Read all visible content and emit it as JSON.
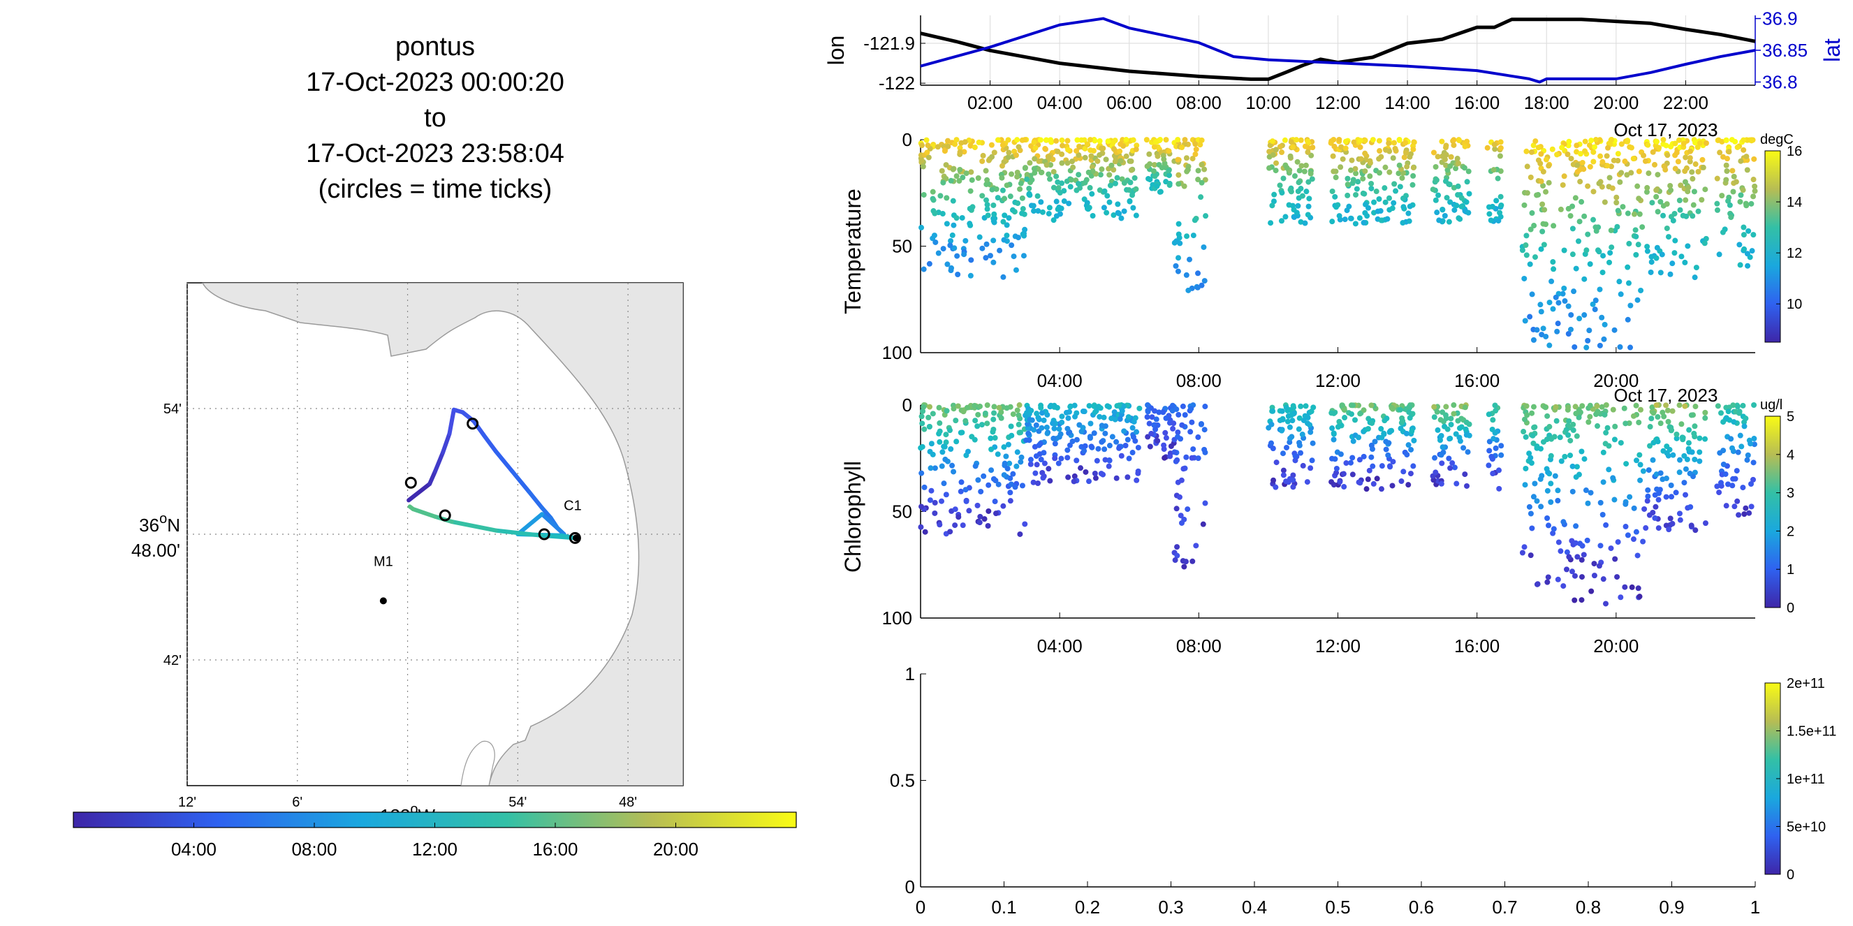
{
  "title_lines": [
    "pontus",
    "17-Oct-2023 00:00:20",
    "to",
    "17-Oct-2023 23:58:04",
    "(circles = time ticks)"
  ],
  "chart_data": [
    {
      "id": "map",
      "type": "scatter",
      "description_role": "vehicle track map colored by time",
      "lon_ticks": [
        "12'",
        "6'",
        "54'",
        "48'"
      ],
      "lon_tick_values": [
        -122.2,
        -122.1,
        -121.9,
        -121.8
      ],
      "lon_center_label": "122",
      "lon_center_suffix": "W",
      "lat_ticks": [
        "54'",
        "42'"
      ],
      "lat_tick_values": [
        36.9,
        36.7
      ],
      "lat_center_label": [
        "36",
        "N",
        "48.00'"
      ],
      "xlim": [
        -122.2,
        -121.75
      ],
      "ylim": [
        36.6,
        37.0
      ],
      "stations": [
        {
          "name": "M1",
          "lon": -122.022,
          "lat": 36.747
        },
        {
          "name": "C1",
          "lon": -121.847,
          "lat": 36.797
        }
      ],
      "track": [
        {
          "lon": -121.999,
          "lat": 36.827,
          "hour": 0.0
        },
        {
          "lon": -121.98,
          "lat": 36.84,
          "hour": 0.5
        },
        {
          "lon": -121.975,
          "lat": 36.85,
          "hour": 1.0
        },
        {
          "lon": -121.968,
          "lat": 36.865,
          "hour": 1.5
        },
        {
          "lon": -121.962,
          "lat": 36.88,
          "hour": 2.0
        },
        {
          "lon": -121.958,
          "lat": 36.899,
          "hour": 2.6
        },
        {
          "lon": -121.95,
          "lat": 36.897,
          "hour": 3.0
        },
        {
          "lon": -121.94,
          "lat": 36.89,
          "hour": 3.5
        },
        {
          "lon": -121.931,
          "lat": 36.879,
          "hour": 4.0
        },
        {
          "lon": -121.92,
          "lat": 36.866,
          "hour": 4.5
        },
        {
          "lon": -121.905,
          "lat": 36.85,
          "hour": 5.0
        },
        {
          "lon": -121.89,
          "lat": 36.834,
          "hour": 5.5
        },
        {
          "lon": -121.878,
          "lat": 36.821,
          "hour": 6.0
        },
        {
          "lon": -121.87,
          "lat": 36.813,
          "hour": 6.5
        },
        {
          "lon": -121.864,
          "lat": 36.805,
          "hour": 7.0
        },
        {
          "lon": -121.858,
          "lat": 36.8,
          "hour": 7.3
        },
        {
          "lon": -121.878,
          "lat": 36.816,
          "hour": 7.6
        },
        {
          "lon": -121.9,
          "lat": 36.8,
          "hour": 10.0
        },
        {
          "lon": -121.86,
          "lat": 36.799,
          "hour": 11.0
        },
        {
          "lon": -121.848,
          "lat": 36.797,
          "hour": 12.0
        },
        {
          "lon": -121.879,
          "lat": 36.799,
          "hour": 13.0
        },
        {
          "lon": -121.92,
          "lat": 36.803,
          "hour": 14.0
        },
        {
          "lon": -121.96,
          "lat": 36.81,
          "hour": 15.0
        },
        {
          "lon": -121.975,
          "lat": 36.814,
          "hour": 15.5
        },
        {
          "lon": -121.995,
          "lat": 36.82,
          "hour": 16.0
        },
        {
          "lon": -121.998,
          "lat": 36.822,
          "hour": 16.3
        }
      ],
      "time_ticks": [
        {
          "lon": -121.997,
          "lat": 36.841
        },
        {
          "lon": -121.941,
          "lat": 36.888
        },
        {
          "lon": -121.966,
          "lat": 36.815
        },
        {
          "lon": -121.876,
          "lat": 36.8
        },
        {
          "lon": -121.848,
          "lat": 36.797
        }
      ],
      "colorbar": {
        "ticks": [
          "04:00",
          "08:00",
          "12:00",
          "16:00",
          "20:00"
        ],
        "tick_hours": [
          4,
          8,
          12,
          16,
          20
        ],
        "range": [
          0,
          24
        ]
      }
    },
    {
      "id": "position",
      "type": "line",
      "ylabel_left": "lon",
      "ylabel_right": "lat",
      "left_ticks": [
        "-121.9",
        "-122"
      ],
      "left_tick_values": [
        -121.9,
        -122.0
      ],
      "left_ylim": [
        -122.005,
        -121.83
      ],
      "right_ticks": [
        "36.9",
        "36.85",
        "36.8"
      ],
      "right_tick_values": [
        36.9,
        36.85,
        36.8
      ],
      "right_ylim": [
        36.795,
        36.905
      ],
      "x_ticks": [
        "02:00",
        "04:00",
        "06:00",
        "08:00",
        "10:00",
        "12:00",
        "14:00",
        "16:00",
        "18:00",
        "20:00",
        "22:00"
      ],
      "x_tick_hours": [
        2,
        4,
        6,
        8,
        10,
        12,
        14,
        16,
        18,
        20,
        22
      ],
      "date_label": "Oct 17, 2023",
      "xlim": [
        0,
        24
      ],
      "series": [
        {
          "color": "#000000",
          "points": [
            [
              0,
              -121.875
            ],
            [
              1,
              -121.895
            ],
            [
              2,
              -121.918
            ],
            [
              4,
              -121.95
            ],
            [
              6,
              -121.97
            ],
            [
              8,
              -121.983
            ],
            [
              9.5,
              -121.99
            ],
            [
              10,
              -121.99
            ],
            [
              10.5,
              -121.973
            ],
            [
              11,
              -121.955
            ],
            [
              11.5,
              -121.94
            ],
            [
              12,
              -121.948
            ],
            [
              13,
              -121.935
            ],
            [
              14,
              -121.9
            ],
            [
              15,
              -121.89
            ],
            [
              16,
              -121.86
            ],
            [
              16.5,
              -121.86
            ],
            [
              17,
              -121.84
            ],
            [
              18,
              -121.84
            ],
            [
              19,
              -121.84
            ],
            [
              20,
              -121.845
            ],
            [
              21,
              -121.85
            ],
            [
              22,
              -121.865
            ],
            [
              23,
              -121.878
            ],
            [
              24,
              -121.895
            ]
          ]
        },
        {
          "color": "#0000cc",
          "points": [
            [
              0,
              36.825
            ],
            [
              2,
              36.855
            ],
            [
              4,
              36.89
            ],
            [
              5.25,
              36.9
            ],
            [
              6,
              36.885
            ],
            [
              8,
              36.862
            ],
            [
              9,
              36.84
            ],
            [
              10,
              36.835
            ],
            [
              12,
              36.83
            ],
            [
              14,
              36.825
            ],
            [
              16,
              36.818
            ],
            [
              17.5,
              36.805
            ],
            [
              17.8,
              36.8
            ],
            [
              18,
              36.805
            ],
            [
              20,
              36.805
            ],
            [
              21,
              36.815
            ],
            [
              22,
              36.828
            ],
            [
              23,
              36.84
            ],
            [
              24,
              36.85
            ]
          ]
        }
      ]
    },
    {
      "id": "temperature",
      "type": "scatter",
      "ylabel": "Temperature",
      "y_ticks": [
        "0",
        "50",
        "100"
      ],
      "y_tick_values": [
        0,
        50,
        100
      ],
      "ylim": [
        0,
        100
      ],
      "y_reversed": true,
      "x_ticks": [
        "04:00",
        "08:00",
        "12:00",
        "16:00",
        "20:00"
      ],
      "x_tick_hours": [
        4,
        8,
        12,
        16,
        20
      ],
      "date_label": "Oct 17, 2023",
      "xlim": [
        0,
        24
      ],
      "colorbar": {
        "units": "degC",
        "ticks": [
          "16",
          "14",
          "12",
          "10"
        ],
        "tick_values": [
          16,
          14,
          12,
          10
        ],
        "clim": [
          8.5,
          16
        ]
      },
      "segments": [
        {
          "t0": 0.0,
          "t1": 3.0,
          "dmax": 65,
          "surf": 15.5,
          "deep": 11
        },
        {
          "t0": 3.0,
          "t1": 6.3,
          "dmax": 38,
          "surf": 15.8,
          "deep": 12
        },
        {
          "t0": 6.5,
          "t1": 7.3,
          "dmax": 25,
          "surf": 15.8,
          "deep": 12.5
        },
        {
          "t0": 7.3,
          "t1": 8.2,
          "dmax": 75,
          "surf": 15.5,
          "deep": 11
        },
        {
          "t0": 10.0,
          "t1": 11.3,
          "dmax": 40,
          "surf": 15.5,
          "deep": 12
        },
        {
          "t0": 11.8,
          "t1": 13.1,
          "dmax": 40,
          "surf": 15.6,
          "deep": 12
        },
        {
          "t0": 13.1,
          "t1": 14.2,
          "dmax": 40,
          "surf": 15.6,
          "deep": 12
        },
        {
          "t0": 14.7,
          "t1": 15.8,
          "dmax": 40,
          "surf": 15.5,
          "deep": 12
        },
        {
          "t0": 16.3,
          "t1": 16.7,
          "dmax": 40,
          "surf": 15.5,
          "deep": 12
        },
        {
          "t0": 17.3,
          "t1": 20.8,
          "dmax": 98,
          "surf": 15.8,
          "deep": 11
        },
        {
          "t0": 20.8,
          "t1": 22.6,
          "dmax": 65,
          "surf": 15.8,
          "deep": 12
        },
        {
          "t0": 22.9,
          "t1": 24.0,
          "dmax": 60,
          "surf": 15.8,
          "deep": 12
        }
      ]
    },
    {
      "id": "chlorophyll",
      "type": "scatter",
      "ylabel": "Chlorophyll",
      "y_ticks": [
        "0",
        "50",
        "100"
      ],
      "y_tick_values": [
        0,
        50,
        100
      ],
      "ylim": [
        0,
        100
      ],
      "y_reversed": true,
      "x_ticks": [
        "04:00",
        "08:00",
        "12:00",
        "16:00",
        "20:00"
      ],
      "x_tick_hours": [
        4,
        8,
        12,
        16,
        20
      ],
      "date_label": "Oct 17, 2023",
      "xlim": [
        0,
        24
      ],
      "colorbar": {
        "units": "ug/l",
        "ticks": [
          "5",
          "4",
          "3",
          "2",
          "1",
          "0"
        ],
        "tick_values": [
          5,
          4,
          3,
          2,
          1,
          0
        ],
        "clim": [
          0,
          5
        ]
      },
      "segments": [
        {
          "t0": 0.0,
          "t1": 3.0,
          "dmax": 62,
          "surf": 3.6,
          "deep": 0.3
        },
        {
          "t0": 3.0,
          "t1": 6.3,
          "dmax": 38,
          "surf": 2.4,
          "deep": 0.4
        },
        {
          "t0": 6.5,
          "t1": 7.3,
          "dmax": 25,
          "surf": 1.2,
          "deep": 0.3
        },
        {
          "t0": 7.3,
          "t1": 8.2,
          "dmax": 78,
          "surf": 1.2,
          "deep": 0.3
        },
        {
          "t0": 10.0,
          "t1": 11.3,
          "dmax": 40,
          "surf": 2.8,
          "deep": 0.3
        },
        {
          "t0": 11.8,
          "t1": 13.1,
          "dmax": 40,
          "surf": 3.5,
          "deep": 0.3
        },
        {
          "t0": 13.1,
          "t1": 14.2,
          "dmax": 40,
          "surf": 3.5,
          "deep": 0.3
        },
        {
          "t0": 14.7,
          "t1": 15.8,
          "dmax": 40,
          "surf": 3.8,
          "deep": 0.3
        },
        {
          "t0": 16.3,
          "t1": 16.7,
          "dmax": 40,
          "surf": 3.2,
          "deep": 0.4
        },
        {
          "t0": 17.3,
          "t1": 20.8,
          "dmax": 95,
          "surf": 3.6,
          "deep": 0.2
        },
        {
          "t0": 20.8,
          "t1": 22.6,
          "dmax": 62,
          "surf": 3.8,
          "deep": 0.4
        },
        {
          "t0": 22.9,
          "t1": 24.0,
          "dmax": 52,
          "surf": 3.0,
          "deep": 0.3
        }
      ]
    },
    {
      "id": "empty",
      "type": "scatter",
      "x_ticks": [
        "0",
        "0.1",
        "0.2",
        "0.3",
        "0.4",
        "0.5",
        "0.6",
        "0.7",
        "0.8",
        "0.9",
        "1"
      ],
      "x_tick_values": [
        0,
        0.1,
        0.2,
        0.3,
        0.4,
        0.5,
        0.6,
        0.7,
        0.8,
        0.9,
        1
      ],
      "y_ticks": [
        "1",
        "0.5",
        "0"
      ],
      "y_tick_values": [
        1,
        0.5,
        0
      ],
      "xlim": [
        0,
        1
      ],
      "ylim": [
        0,
        1
      ],
      "colorbar": {
        "ticks": [
          "2e+11",
          "1.5e+11",
          "1e+11",
          "5e+10",
          "0"
        ],
        "tick_values": [
          200000000000.0,
          150000000000.0,
          100000000000.0,
          50000000000.0,
          0
        ],
        "clim": [
          0,
          200000000000.0
        ]
      }
    }
  ]
}
